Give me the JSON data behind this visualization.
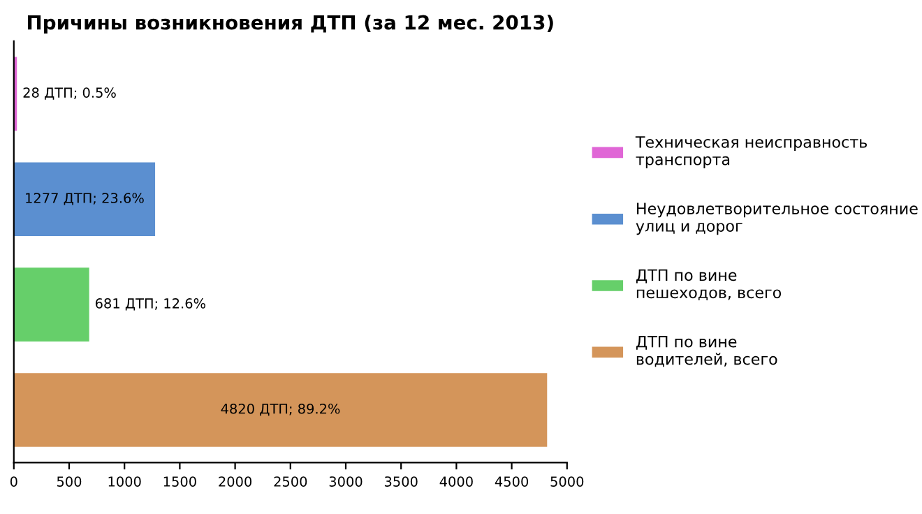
{
  "chart_data": {
    "type": "bar",
    "orientation": "horizontal",
    "title": "Причины возникновения ДТП (за 12 мес. 2013)",
    "categories": [
      null,
      null,
      null,
      null
    ],
    "series": [
      {
        "name": "Техническая неисправность\nтранспорта",
        "color": "#e066d6",
        "values": [
          28,
          null,
          null,
          null
        ],
        "value_labels": [
          "28 ДТП; 0.5%",
          null,
          null,
          null
        ]
      },
      {
        "name": "Неудовлетворительное состояние\nулиц и дорог",
        "color": "#5b8fd0",
        "values": [
          null,
          1277,
          null,
          null
        ],
        "value_labels": [
          null,
          "1277 ДТП; 23.6%",
          null,
          null
        ]
      },
      {
        "name": "ДТП по вине\nпешеходов, всего",
        "color": "#66cf6a",
        "values": [
          null,
          null,
          681,
          null
        ],
        "value_labels": [
          null,
          null,
          "681 ДТП; 12.6%",
          null
        ]
      },
      {
        "name": "ДТП по вине\nводителей, всего",
        "color": "#d4955a",
        "values": [
          null,
          null,
          null,
          4820
        ],
        "value_labels": [
          null,
          null,
          null,
          "4820 ДТП; 89.2%"
        ]
      }
    ],
    "xlim": [
      0,
      5000
    ],
    "xticks": [
      0,
      500,
      1000,
      1500,
      2000,
      2500,
      3000,
      3500,
      4000,
      4500,
      5000
    ],
    "grid": false,
    "legend": "right"
  }
}
